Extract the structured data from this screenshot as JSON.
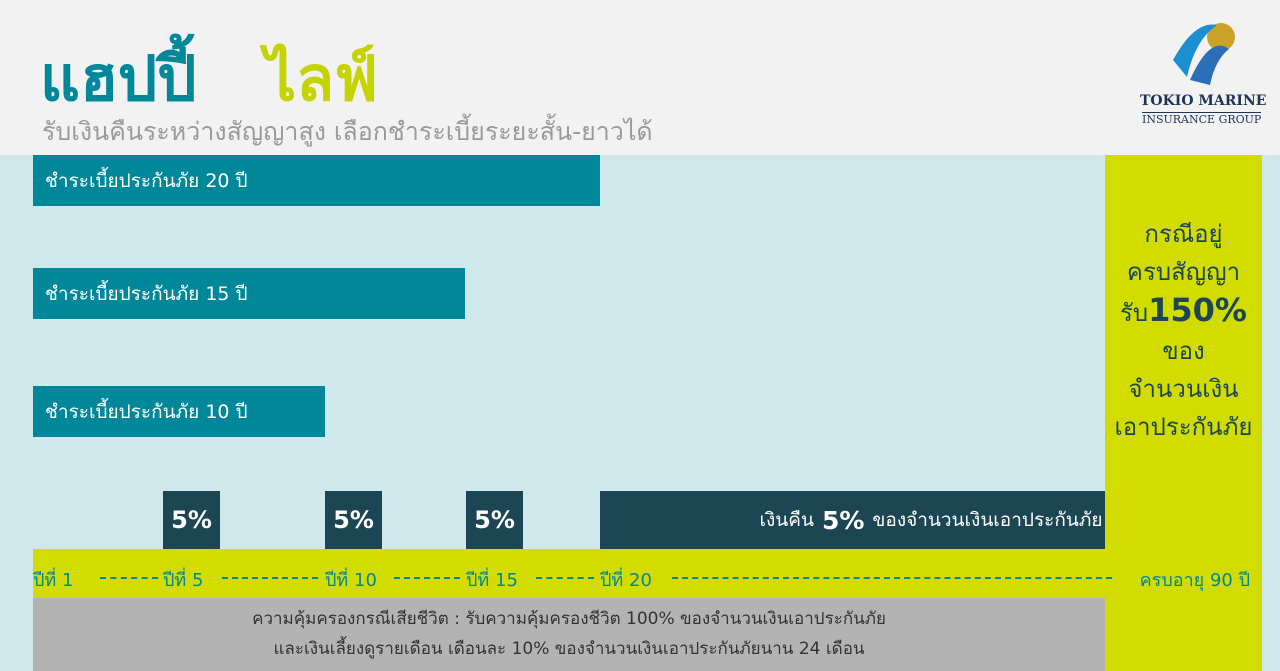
{
  "header": {
    "title_part1": "แฮปปี้",
    "title_part2": "ไลฟ์",
    "subtitle": "รับเงินคืนระหว่างสัญญาสูง เลือกชำระเบี้ยระยะสั้น-ยาวได้",
    "logo": {
      "line1": "TOKIO MARINE",
      "line2": "INSURANCE GROUP"
    }
  },
  "payment_bars": [
    "ชำระเบี้ยประกันภัย 20 ปี",
    "ชำระเบี้ยประกันภัย 15 ปี",
    "ชำระเบี้ยประกันภัย 10 ปี"
  ],
  "payouts": [
    "5%",
    "5%",
    "5%"
  ],
  "annual_payout": {
    "prefix": "เงินคืน",
    "rate": "5%",
    "suffix": "ของจำนวนเงินเอาประกันภัย"
  },
  "maturity": {
    "lines_before": [
      "กรณีอยู่",
      "ครบสัญญา"
    ],
    "prefix": "รับ",
    "rate": "150%",
    "lines_after": [
      "ของ",
      "จำนวนเงิน",
      "เอาประกันภัย"
    ]
  },
  "timeline": [
    "ปีที่ 1",
    "ปีที่ 5",
    "ปีที่ 10",
    "ปีที่ 15",
    "ปีที่ 20",
    "ครบอายุ 90 ปี"
  ],
  "death_benefit": [
    "ความคุ้มครองกรณีเสียชีวิต : รับความคุ้มครองชีวิต 100% ของจำนวนเงินเอาประกันภัย",
    "และเงินเลี้ยงดูรายเดือน เดือนละ 10% ของจำนวนเงินเอาประกันภัยนาน 24 เดือน"
  ]
}
